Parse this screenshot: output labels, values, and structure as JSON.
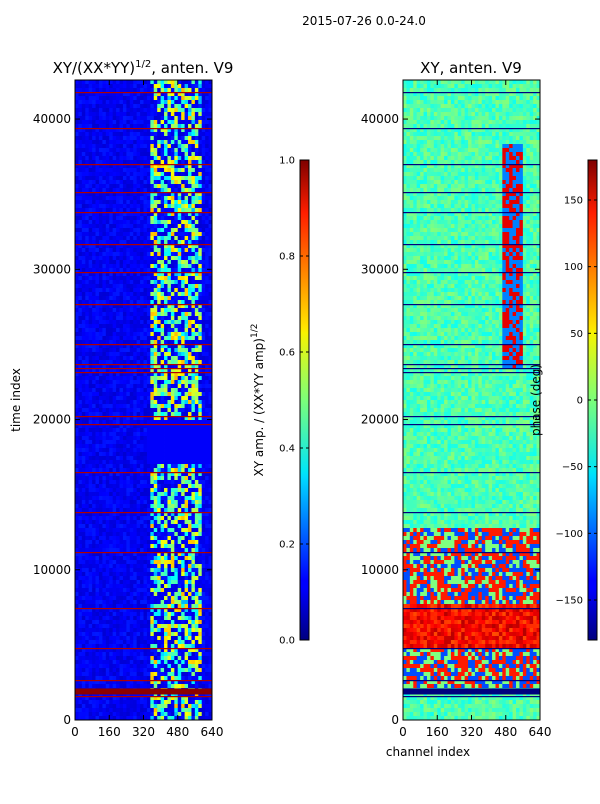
{
  "suptitle": "2015-07-26 0.0-24.0",
  "chart_data": [
    {
      "type": "heatmap",
      "title_main": "XY/(XX*YY)",
      "title_sup": "1/2",
      "title_suffix": ", anten. V9",
      "ylabel": "time index",
      "xlabel": "",
      "xlim": [
        0,
        640
      ],
      "ylim": [
        0,
        42600
      ],
      "xticks": [
        0,
        160,
        320,
        480,
        640
      ],
      "yticks": [
        0,
        10000,
        20000,
        30000,
        40000
      ],
      "colormap": "jet",
      "colorbar": {
        "label_main": "XY amp. / (XX*YY amp)",
        "label_sup": "1/2",
        "range": [
          0.0,
          1.0
        ],
        "ticks": [
          0.0,
          0.2,
          0.4,
          0.6,
          0.8,
          1.0
        ],
        "tick_labels": [
          "0.0",
          "0.2",
          "0.4",
          "0.6",
          "0.8",
          "1.0"
        ]
      }
    },
    {
      "type": "heatmap",
      "title": "XY, anten. V9",
      "xlabel": "channel index",
      "ylabel": "",
      "xlim": [
        0,
        640
      ],
      "ylim": [
        0,
        42600
      ],
      "xticks": [
        0,
        160,
        320,
        480,
        640
      ],
      "yticks": [
        0,
        10000,
        20000,
        30000,
        40000
      ],
      "colormap": "jet",
      "colorbar": {
        "label": "phase (deg)",
        "range": [
          -180,
          180
        ],
        "ticks": [
          -150,
          -100,
          -50,
          0,
          50,
          100,
          150
        ],
        "tick_labels": [
          "−150",
          "−100",
          "−50",
          "0",
          "50",
          "100",
          "150"
        ]
      }
    }
  ]
}
